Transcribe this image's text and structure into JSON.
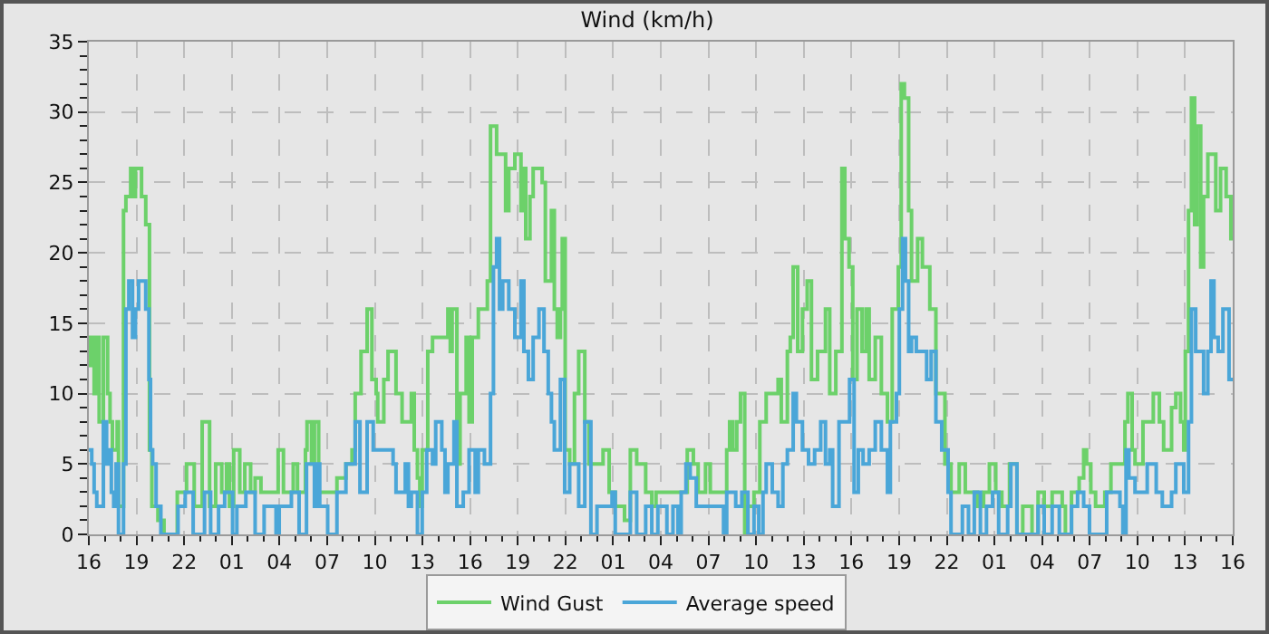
{
  "chart_data": {
    "type": "step",
    "title": "Wind (km/h)",
    "xlim": [
      "--01-01T16:00",
      "--01-04T16:00"
    ],
    "xticks": [
      {
        "value": "--01-01T16:00",
        "label": "16"
      },
      {
        "value": "--01-01T17:00",
        "label": null
      },
      {
        "value": "--01-01T18:00",
        "label": null
      },
      {
        "value": "--01-01T19:00",
        "label": "19"
      },
      {
        "value": "--01-01T20:00",
        "label": null
      },
      {
        "value": "--01-01T21:00",
        "label": null
      },
      {
        "value": "--01-01T22:00",
        "label": "22"
      },
      {
        "value": "--01-01T23:00",
        "label": null
      },
      {
        "value": "--01-02T00:00",
        "label": null
      },
      {
        "value": "--01-02T01:00",
        "label": "01"
      },
      {
        "value": "--01-02T02:00",
        "label": null
      },
      {
        "value": "--01-02T03:00",
        "label": null
      },
      {
        "value": "--01-02T04:00",
        "label": "04"
      },
      {
        "value": "--01-02T05:00",
        "label": null
      },
      {
        "value": "--01-02T06:00",
        "label": null
      },
      {
        "value": "--01-02T07:00",
        "label": "07"
      },
      {
        "value": "--01-02T08:00",
        "label": null
      },
      {
        "value": "--01-02T09:00",
        "label": null
      },
      {
        "value": "--01-02T10:00",
        "label": "10"
      },
      {
        "value": "--01-02T11:00",
        "label": null
      },
      {
        "value": "--01-02T12:00",
        "label": null
      },
      {
        "value": "--01-02T13:00",
        "label": "13"
      },
      {
        "value": "--01-02T14:00",
        "label": null
      },
      {
        "value": "--01-02T15:00",
        "label": null
      },
      {
        "value": "--01-02T16:00",
        "label": "16"
      },
      {
        "value": "--01-02T17:00",
        "label": null
      },
      {
        "value": "--01-02T18:00",
        "label": null
      },
      {
        "value": "--01-02T19:00",
        "label": "19"
      },
      {
        "value": "--01-02T20:00",
        "label": null
      },
      {
        "value": "--01-02T21:00",
        "label": null
      },
      {
        "value": "--01-02T22:00",
        "label": "22"
      },
      {
        "value": "--01-02T23:00",
        "label": null
      },
      {
        "value": "--01-03T00:00",
        "label": null
      },
      {
        "value": "--01-03T01:00",
        "label": "01"
      },
      {
        "value": "--01-03T02:00",
        "label": null
      },
      {
        "value": "--01-03T03:00",
        "label": null
      },
      {
        "value": "--01-03T04:00",
        "label": "04"
      },
      {
        "value": "--01-03T05:00",
        "label": null
      },
      {
        "value": "--01-03T06:00",
        "label": null
      },
      {
        "value": "--01-03T07:00",
        "label": "07"
      },
      {
        "value": "--01-03T08:00",
        "label": null
      },
      {
        "value": "--01-03T09:00",
        "label": null
      },
      {
        "value": "--01-03T10:00",
        "label": "10"
      },
      {
        "value": "--01-03T11:00",
        "label": null
      },
      {
        "value": "--01-03T12:00",
        "label": null
      },
      {
        "value": "--01-03T13:00",
        "label": "13"
      },
      {
        "value": "--01-03T14:00",
        "label": null
      },
      {
        "value": "--01-03T15:00",
        "label": null
      },
      {
        "value": "--01-03T16:00",
        "label": "16"
      },
      {
        "value": "--01-03T17:00",
        "label": null
      },
      {
        "value": "--01-03T18:00",
        "label": null
      },
      {
        "value": "--01-03T19:00",
        "label": "19"
      },
      {
        "value": "--01-03T20:00",
        "label": null
      },
      {
        "value": "--01-03T21:00",
        "label": null
      },
      {
        "value": "--01-03T22:00",
        "label": "22"
      },
      {
        "value": "--01-03T23:00",
        "label": null
      },
      {
        "value": "--01-04T00:00",
        "label": null
      },
      {
        "value": "--01-04T01:00",
        "label": "01"
      },
      {
        "value": "--01-04T02:00",
        "label": null
      },
      {
        "value": "--01-04T03:00",
        "label": null
      },
      {
        "value": "--01-04T04:00",
        "label": "04"
      },
      {
        "value": "--01-04T05:00",
        "label": null
      },
      {
        "value": "--01-04T06:00",
        "label": null
      },
      {
        "value": "--01-04T07:00",
        "label": "07"
      },
      {
        "value": "--01-04T08:00",
        "label": null
      },
      {
        "value": "--01-04T09:00",
        "label": null
      },
      {
        "value": "--01-04T10:00",
        "label": "10"
      },
      {
        "value": "--01-04T11:00",
        "label": null
      },
      {
        "value": "--01-04T12:00",
        "label": null
      },
      {
        "value": "--01-04T13:00",
        "label": "13"
      },
      {
        "value": "--01-04T14:00",
        "label": null
      },
      {
        "value": "--01-04T15:00",
        "label": null
      },
      {
        "value": "--01-04T16:00",
        "label": "16"
      }
    ],
    "ylim": [
      0,
      35
    ],
    "yticks": [
      0,
      {
        "value": 1,
        "label": null
      },
      {
        "value": 2,
        "label": null
      },
      {
        "value": 3,
        "label": null
      },
      {
        "value": 4,
        "label": null
      },
      5,
      {
        "value": 6,
        "label": null
      },
      {
        "value": 7,
        "label": null
      },
      {
        "value": 8,
        "label": null
      },
      {
        "value": 9,
        "label": null
      },
      10,
      {
        "value": 11,
        "label": null
      },
      {
        "value": 12,
        "label": null
      },
      {
        "value": 13,
        "label": null
      },
      {
        "value": 14,
        "label": null
      },
      15,
      {
        "value": 16,
        "label": null
      },
      {
        "value": 17,
        "label": null
      },
      {
        "value": 18,
        "label": null
      },
      {
        "value": 19,
        "label": null
      },
      20,
      {
        "value": 21,
        "label": null
      },
      {
        "value": 22,
        "label": null
      },
      {
        "value": 23,
        "label": null
      },
      {
        "value": 24,
        "label": null
      },
      25,
      {
        "value": 26,
        "label": null
      },
      {
        "value": 27,
        "label": null
      },
      {
        "value": 28,
        "label": null
      },
      {
        "value": 29,
        "label": null
      },
      30,
      {
        "value": 31,
        "label": null
      },
      {
        "value": 32,
        "label": null
      },
      {
        "value": 33,
        "label": null
      },
      {
        "value": 34,
        "label": null
      },
      35
    ],
    "grid": true,
    "legend": "bottom",
    "series": [
      {
        "name": "Wind Gust",
        "color": "#6cd16a",
        "x": [
          "--01-01T16:00",
          "--01-01T16:07",
          "--01-01T16:20",
          "--01-01T16:30",
          "--01-01T16:39",
          "--01-01T16:55",
          "--01-01T17:11",
          "--01-01T17:20",
          "--01-01T17:29",
          "--01-01T17:47",
          "--01-01T17:52",
          "--01-01T18:11",
          "--01-01T18:20",
          "--01-01T18:38",
          "--01-01T18:49",
          "--01-01T18:56",
          "--01-01T19:19",
          "--01-01T19:35",
          "--01-01T19:49",
          "--01-01T19:58",
          "--01-01T20:21",
          "--01-01T20:44",
          "--01-01T21:34",
          "--01-01T22:09",
          "--01-01T22:38",
          "--01-01T23:08",
          "--01-01T23:36",
          "--01-01T23:59",
          "--01-02T00:22",
          "--01-02T00:40",
          "--01-02T00:51",
          "--01-02T01:07",
          "--01-02T01:30",
          "--01-02T01:49",
          "--01-02T02:11",
          "--01-02T02:28",
          "--01-02T02:50",
          "--01-02T03:55",
          "--01-02T04:15",
          "--01-02T04:52",
          "--01-02T05:08",
          "--01-02T05:38",
          "--01-02T05:44",
          "--01-02T06:01",
          "--01-02T06:12",
          "--01-02T06:28",
          "--01-02T07:37",
          "--01-02T08:11",
          "--01-02T08:34",
          "--01-02T08:46",
          "--01-02T09:08",
          "--01-02T09:31",
          "--01-02T09:49",
          "--01-02T10:05",
          "--01-02T10:11",
          "--01-02T10:34",
          "--01-02T10:50",
          "--01-02T11:20",
          "--01-02T11:43",
          "--01-02T12:18",
          "--01-02T12:29",
          "--01-02T12:41",
          "--01-02T12:50",
          "--01-02T12:59",
          "--01-02T13:20",
          "--01-02T13:38",
          "--01-02T14:36",
          "--01-02T14:45",
          "--01-02T14:52",
          "--01-02T15:10",
          "--01-02T15:22",
          "--01-02T15:45",
          "--01-02T15:56",
          "--01-02T16:08",
          "--01-02T16:31",
          "--01-02T17:05",
          "--01-02T17:17",
          "--01-02T17:40",
          "--01-02T18:14",
          "--01-02T18:26",
          "--01-02T18:49",
          "--01-02T19:12",
          "--01-02T19:19",
          "--01-02T19:30",
          "--01-02T19:46",
          "--01-02T19:58",
          "--01-02T20:32",
          "--01-02T20:44",
          "--01-02T21:07",
          "--01-02T21:18",
          "--01-02T21:29",
          "--01-02T21:41",
          "--01-02T21:48",
          "--01-02T21:59",
          "--01-02T22:16",
          "--01-02T22:34",
          "--01-02T22:50",
          "--01-02T23:13",
          "--01-02T23:29",
          "--01-03T00:22",
          "--01-03T00:45",
          "--01-03T01:08",
          "--01-03T01:43",
          "--01-03T02:05",
          "--01-03T02:29",
          "--01-03T03:03",
          "--01-03T03:26",
          "--01-03T03:42",
          "--01-03T05:40",
          "--01-03T06:03",
          "--01-03T06:21",
          "--01-03T06:49",
          "--01-03T07:07",
          "--01-03T08:09",
          "--01-03T08:20",
          "--01-03T08:32",
          "--01-03T08:47",
          "--01-03T09:01",
          "--01-03T09:17",
          "--01-03T09:29",
          "--01-03T09:52",
          "--01-03T10:14",
          "--01-03T10:38",
          "--01-03T11:23",
          "--01-03T11:35",
          "--01-03T11:58",
          "--01-03T12:09",
          "--01-03T12:20",
          "--01-03T12:37",
          "--01-03T12:55",
          "--01-03T13:13",
          "--01-03T13:29",
          "--01-03T13:52",
          "--01-03T14:22",
          "--01-03T14:38",
          "--01-03T15:01",
          "--01-03T15:24",
          "--01-03T15:35",
          "--01-03T15:51",
          "--01-03T16:05",
          "--01-03T16:21",
          "--01-03T16:40",
          "--01-03T16:55",
          "--01-03T17:07",
          "--01-03T17:30",
          "--01-03T17:53",
          "--01-03T18:16",
          "--01-03T18:34",
          "--01-03T18:57",
          "--01-03T19:08",
          "--01-03T19:20",
          "--01-03T19:36",
          "--01-03T19:47",
          "--01-03T20:10",
          "--01-03T20:28",
          "--01-03T20:56",
          "--01-03T21:19",
          "--01-03T21:53",
          "--01-03T22:16",
          "--01-03T22:47",
          "--01-03T23:10",
          "--01-03T23:56",
          "--01-04T00:19",
          "--01-04T00:41",
          "--01-04T01:05",
          "--01-04T01:28",
          "--01-04T01:57",
          "--01-04T02:25",
          "--01-04T02:47",
          "--01-04T03:22",
          "--01-04T03:45",
          "--01-04T04:08",
          "--01-04T04:38",
          "--01-04T05:16",
          "--01-04T05:28",
          "--01-04T05:51",
          "--01-04T06:20",
          "--01-04T06:37",
          "--01-04T06:48",
          "--01-04T07:04",
          "--01-04T07:22",
          "--01-04T07:57",
          "--01-04T08:20",
          "--01-04T09:13",
          "--01-04T09:24",
          "--01-04T09:40",
          "--01-04T09:51",
          "--01-04T10:21",
          "--01-04T11:00",
          "--01-04T11:23",
          "--01-04T11:39",
          "--01-04T12:09",
          "--01-04T12:25",
          "--01-04T12:43",
          "--01-04T12:55",
          "--01-04T13:01",
          "--01-04T13:13",
          "--01-04T13:24",
          "--01-04T13:36",
          "--01-04T13:45",
          "--01-04T13:59",
          "--01-04T14:10",
          "--01-04T14:26",
          "--01-04T14:56",
          "--01-04T15:14",
          "--01-04T15:35",
          "--01-04T15:53",
          "--01-04T16:00"
        ],
        "values": [
          12,
          14,
          10,
          14,
          8,
          14,
          10,
          8,
          6,
          8,
          2,
          23,
          24,
          26,
          24,
          26,
          24,
          22,
          6,
          2,
          1,
          0,
          3,
          5,
          2,
          8,
          2,
          5,
          3,
          5,
          2,
          6,
          3,
          5,
          3,
          4,
          3,
          6,
          3,
          5,
          3,
          6,
          8,
          5,
          8,
          3,
          4,
          5,
          6,
          10,
          13,
          16,
          11,
          10,
          8,
          11,
          13,
          10,
          8,
          10,
          6,
          4,
          2,
          6,
          13,
          14,
          16,
          13,
          16,
          5,
          10,
          14,
          8,
          14,
          16,
          18,
          29,
          27,
          23,
          26,
          27,
          23,
          26,
          21,
          24,
          26,
          25,
          18,
          23,
          16,
          14,
          16,
          21,
          6,
          5,
          10,
          13,
          8,
          5,
          6,
          3,
          2,
          1,
          6,
          5,
          3,
          2,
          3,
          6,
          5,
          3,
          5,
          3,
          6,
          8,
          6,
          8,
          10,
          0,
          2,
          3,
          8,
          10,
          11,
          8,
          13,
          14,
          19,
          13,
          16,
          18,
          11,
          13,
          16,
          10,
          13,
          26,
          21,
          19,
          11,
          16,
          13,
          16,
          11,
          14,
          10,
          8,
          16,
          19,
          32,
          31,
          23,
          18,
          21,
          19,
          16,
          10,
          5,
          3,
          5,
          3,
          2,
          3,
          5,
          3,
          2,
          5,
          0,
          2,
          0,
          3,
          2,
          3,
          2,
          0,
          3,
          4,
          6,
          5,
          3,
          2,
          3,
          5,
          8,
          10,
          6,
          5,
          8,
          10,
          8,
          6,
          9,
          10,
          8,
          6,
          13,
          23,
          31,
          22,
          29,
          19,
          24,
          27,
          23,
          26,
          24,
          21,
          21
        ]
      },
      {
        "name": "Average speed",
        "color": "#4aa6d8",
        "x": [
          "--01-01T16:00",
          "--01-01T16:11",
          "--01-01T16:20",
          "--01-01T16:30",
          "--01-01T16:55",
          "--01-01T17:07",
          "--01-01T17:20",
          "--01-01T17:25",
          "--01-01T17:34",
          "--01-01T17:43",
          "--01-01T17:52",
          "--01-01T18:11",
          "--01-01T18:20",
          "--01-01T18:31",
          "--01-01T18:45",
          "--01-01T18:56",
          "--01-01T19:08",
          "--01-01T19:35",
          "--01-01T19:47",
          "--01-01T19:53",
          "--01-01T20:01",
          "--01-01T20:14",
          "--01-01T20:32",
          "--01-01T21:37",
          "--01-01T22:04",
          "--01-01T22:34",
          "--01-01T23:17",
          "--01-01T23:40",
          "--01-02T00:10",
          "--01-02T00:33",
          "--01-02T01:03",
          "--01-02T01:19",
          "--01-02T01:53",
          "--01-02T02:28",
          "--01-02T03:02",
          "--01-02T03:47",
          "--01-02T03:59",
          "--01-02T04:45",
          "--01-02T05:14",
          "--01-02T05:42",
          "--01-02T06:12",
          "--01-02T06:19",
          "--01-02T06:32",
          "--01-02T07:02",
          "--01-02T07:37",
          "--01-02T08:11",
          "--01-02T08:46",
          "--01-02T09:04",
          "--01-02T09:31",
          "--01-02T09:54",
          "--01-02T11:09",
          "--01-02T11:20",
          "--01-02T11:55",
          "--01-02T12:07",
          "--01-02T12:18",
          "--01-02T12:41",
          "--01-02T12:59",
          "--01-02T13:16",
          "--01-02T13:38",
          "--01-02T13:50",
          "--01-02T14:13",
          "--01-02T14:25",
          "--01-02T14:36",
          "--01-02T14:59",
          "--01-02T15:10",
          "--01-02T15:34",
          "--01-02T15:56",
          "--01-02T16:19",
          "--01-02T16:31",
          "--01-02T16:54",
          "--01-02T17:17",
          "--01-02T17:28",
          "--01-02T17:40",
          "--01-02T17:51",
          "--01-02T18:03",
          "--01-02T18:26",
          "--01-02T18:49",
          "--01-02T19:12",
          "--01-02T19:23",
          "--01-02T19:40",
          "--01-02T19:58",
          "--01-02T20:20",
          "--01-02T20:39",
          "--01-02T20:55",
          "--01-02T21:07",
          "--01-02T21:18",
          "--01-02T21:41",
          "--01-02T21:57",
          "--01-02T22:16",
          "--01-02T22:50",
          "--01-02T23:13",
          "--01-02T23:36",
          "--01-02T23:59",
          "--01-03T00:56",
          "--01-03T01:08",
          "--01-03T02:05",
          "--01-03T02:29",
          "--01-03T03:03",
          "--01-03T03:26",
          "--01-03T03:49",
          "--01-03T04:23",
          "--01-03T04:46",
          "--01-03T05:05",
          "--01-03T05:17",
          "--01-03T05:35",
          "--01-03T05:51",
          "--01-03T06:14",
          "--01-03T07:57",
          "--01-03T08:09",
          "--01-03T08:43",
          "--01-03T09:06",
          "--01-03T09:29",
          "--01-03T09:52",
          "--01-03T10:10",
          "--01-03T10:26",
          "--01-03T10:38",
          "--01-03T11:01",
          "--01-03T11:23",
          "--01-03T11:41",
          "--01-03T11:58",
          "--01-03T12:20",
          "--01-03T12:32",
          "--01-03T12:55",
          "--01-03T13:18",
          "--01-03T13:41",
          "--01-03T14:04",
          "--01-03T14:22",
          "--01-03T14:38",
          "--01-03T14:49",
          "--01-03T15:13",
          "--01-03T15:53",
          "--01-03T16:10",
          "--01-03T16:26",
          "--01-03T16:44",
          "--01-03T17:07",
          "--01-03T17:30",
          "--01-03T17:53",
          "--01-03T18:16",
          "--01-03T18:27",
          "--01-03T18:50",
          "--01-03T19:01",
          "--01-03T19:13",
          "--01-03T19:24",
          "--01-03T19:36",
          "--01-03T19:47",
          "--01-03T20:05",
          "--01-03T20:44",
          "--01-03T21:01",
          "--01-03T21:19",
          "--01-03T21:41",
          "--01-03T22:05",
          "--01-03T22:16",
          "--01-03T22:59",
          "--01-03T23:22",
          "--01-03T23:44",
          "--01-04T00:07",
          "--01-04T00:30",
          "--01-04T00:53",
          "--01-04T01:16",
          "--01-04T01:50",
          "--01-04T02:02",
          "--01-04T02:25",
          "--01-04T03:45",
          "--01-04T04:08",
          "--01-04T04:38",
          "--01-04T05:05",
          "--01-04T05:51",
          "--01-04T06:14",
          "--01-04T06:37",
          "--01-04T06:59",
          "--01-04T08:04",
          "--01-04T08:54",
          "--01-04T09:05",
          "--01-04T09:17",
          "--01-04T09:28",
          "--01-04T09:51",
          "--01-04T10:37",
          "--01-04T11:11",
          "--01-04T11:34",
          "--01-04T12:09",
          "--01-04T12:25",
          "--01-04T12:55",
          "--01-04T13:13",
          "--01-04T13:24",
          "--01-04T13:40",
          "--01-04T14:10",
          "--01-04T14:26",
          "--01-04T14:38",
          "--01-04T14:49",
          "--01-04T15:05",
          "--01-04T15:23",
          "--01-04T15:46",
          "--01-04T16:00"
        ],
        "values": [
          6,
          5,
          3,
          2,
          8,
          5,
          6,
          3,
          2,
          5,
          0,
          5,
          16,
          18,
          14,
          16,
          18,
          16,
          11,
          6,
          5,
          2,
          0,
          2,
          3,
          0,
          3,
          0,
          2,
          3,
          0,
          2,
          3,
          0,
          2,
          0,
          2,
          3,
          0,
          5,
          2,
          5,
          2,
          0,
          3,
          5,
          8,
          3,
          8,
          6,
          5,
          3,
          5,
          2,
          3,
          0,
          3,
          6,
          5,
          8,
          6,
          3,
          5,
          8,
          2,
          3,
          6,
          3,
          6,
          5,
          10,
          19,
          21,
          16,
          18,
          16,
          14,
          18,
          13,
          11,
          14,
          16,
          13,
          10,
          8,
          6,
          11,
          3,
          5,
          2,
          8,
          0,
          2,
          3,
          0,
          3,
          0,
          2,
          0,
          2,
          0,
          2,
          0,
          3,
          5,
          4,
          2,
          0,
          3,
          2,
          3,
          0,
          2,
          0,
          3,
          5,
          3,
          2,
          5,
          6,
          10,
          8,
          6,
          5,
          6,
          8,
          5,
          6,
          2,
          8,
          11,
          3,
          6,
          5,
          6,
          8,
          6,
          3,
          8,
          10,
          16,
          21,
          18,
          13,
          14,
          13,
          11,
          13,
          8,
          6,
          3,
          0,
          2,
          0,
          3,
          0,
          2,
          3,
          0,
          2,
          5,
          0,
          2,
          0,
          2,
          0,
          2,
          3,
          2,
          0,
          3,
          2,
          0,
          6,
          4,
          3,
          5,
          3,
          2,
          3,
          5,
          3,
          8,
          16,
          13,
          10,
          13,
          18,
          14,
          13,
          16,
          11,
          11
        ]
      }
    ]
  }
}
